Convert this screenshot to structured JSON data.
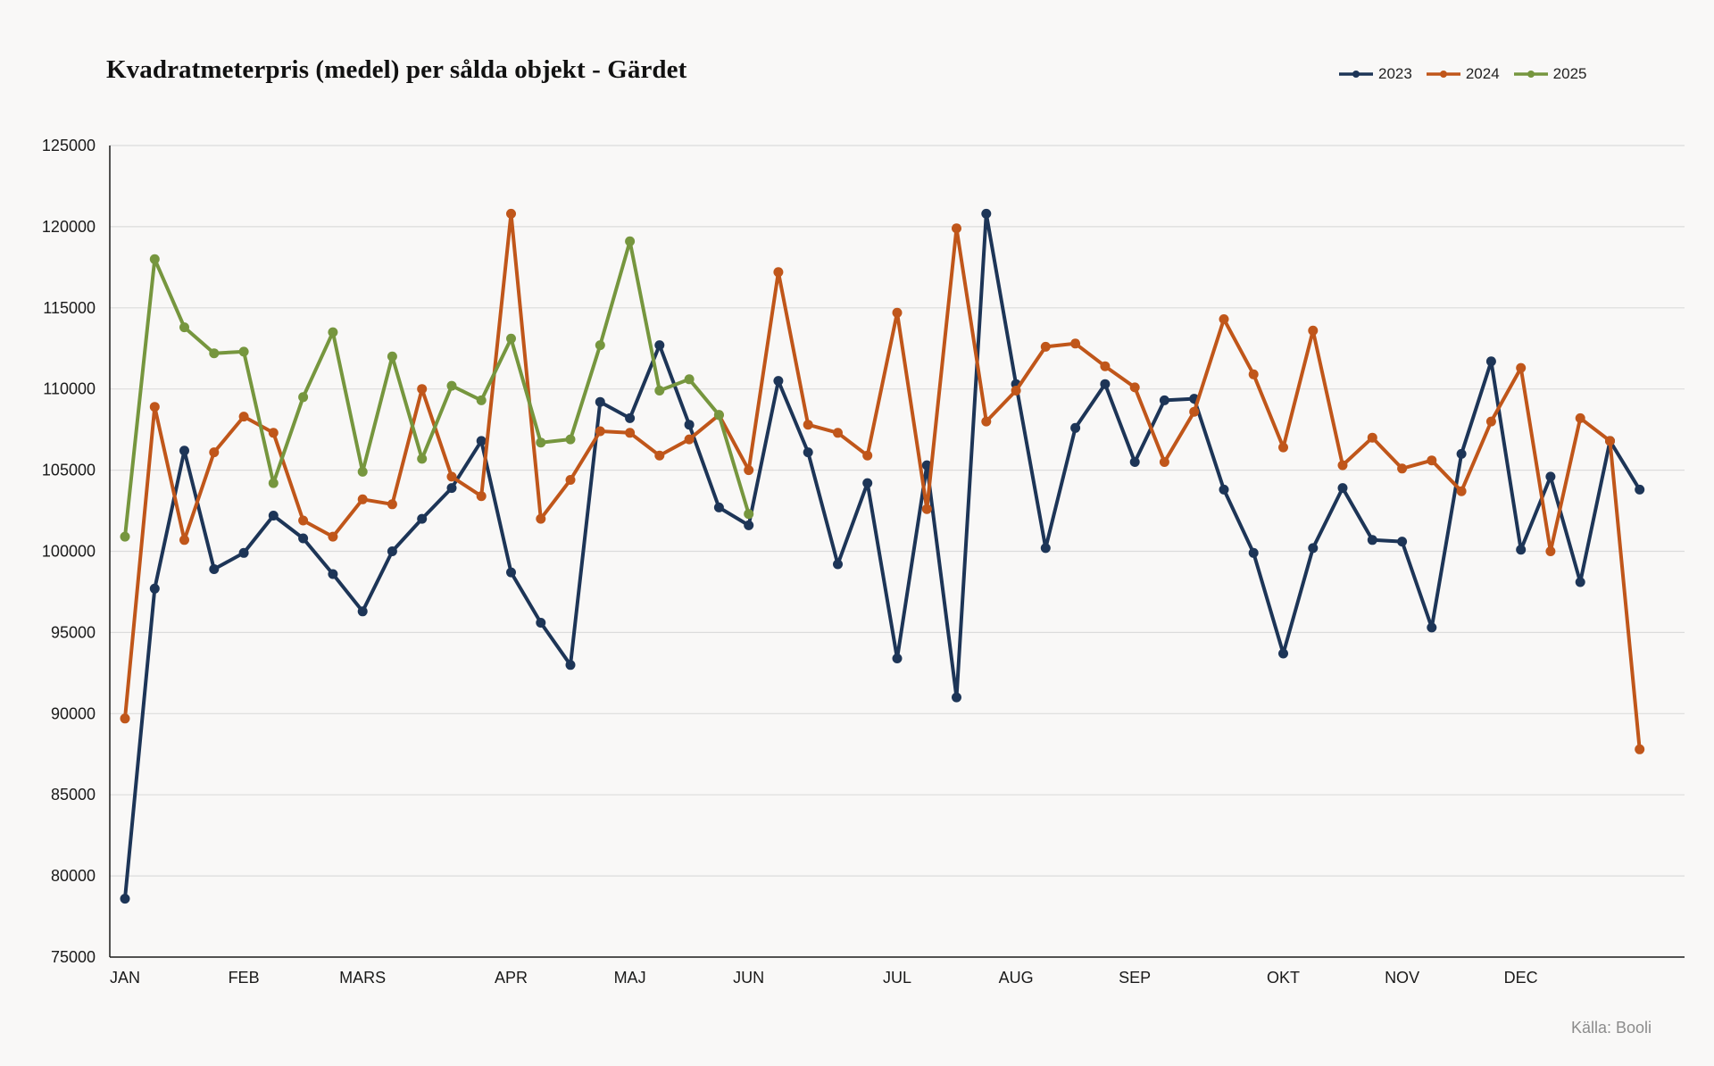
{
  "chart_data": {
    "type": "line",
    "title": "Kvadratmeterpris (medel) per sålda objekt - Gärdet",
    "source": "Källa: Booli",
    "xlabel": "",
    "ylabel": "",
    "ylim": [
      75000,
      125000
    ],
    "yticks": [
      75000,
      80000,
      85000,
      90000,
      95000,
      100000,
      105000,
      110000,
      115000,
      120000,
      125000
    ],
    "x_range": [
      1,
      53
    ],
    "month_ticks": [
      {
        "label": "JAN",
        "x": 1
      },
      {
        "label": "FEB",
        "x": 5
      },
      {
        "label": "MARS",
        "x": 9
      },
      {
        "label": "APR",
        "x": 14
      },
      {
        "label": "MAJ",
        "x": 18
      },
      {
        "label": "JUN",
        "x": 22
      },
      {
        "label": "JUL",
        "x": 27
      },
      {
        "label": "AUG",
        "x": 31
      },
      {
        "label": "SEP",
        "x": 35
      },
      {
        "label": "OKT",
        "x": 40
      },
      {
        "label": "NOV",
        "x": 44
      },
      {
        "label": "DEC",
        "x": 48
      }
    ],
    "grid": true,
    "legend_position": "top-right",
    "series": [
      {
        "name": "2023",
        "color": "#1d3557",
        "x": [
          1,
          2,
          3,
          4,
          5,
          6,
          7,
          8,
          9,
          10,
          11,
          12,
          13,
          14,
          15,
          16,
          17,
          18,
          19,
          20,
          21,
          22,
          23,
          24,
          25,
          26,
          27,
          28,
          29,
          30,
          31,
          32,
          33,
          34,
          35,
          36,
          37,
          38,
          39,
          40,
          41,
          42,
          43,
          44,
          45,
          46,
          47,
          48,
          49,
          50,
          51,
          52,
          53
        ],
        "values": [
          78600,
          97700,
          106200,
          98900,
          99900,
          102200,
          100800,
          98600,
          96300,
          100000,
          102000,
          103900,
          106800,
          98700,
          95600,
          93000,
          109200,
          108200,
          112700,
          107800,
          102700,
          101600,
          110500,
          106100,
          99200,
          104200,
          93400,
          105300,
          91000,
          120800,
          110300,
          100200,
          107600,
          110300,
          105500,
          109300,
          109400,
          103800,
          99900,
          93700,
          100200,
          103900,
          100700,
          100600,
          95300,
          106000,
          111700,
          100100,
          104600,
          98100,
          106800,
          103800,
          null
        ]
      },
      {
        "name": "2024",
        "color": "#c0561a",
        "x": [
          1,
          2,
          3,
          4,
          5,
          6,
          7,
          8,
          9,
          10,
          11,
          12,
          13,
          14,
          15,
          16,
          17,
          18,
          19,
          20,
          21,
          22,
          23,
          24,
          25,
          26,
          27,
          28,
          29,
          30,
          31,
          32,
          33,
          34,
          35,
          36,
          37,
          38,
          39,
          40,
          41,
          42,
          43,
          44,
          45,
          46,
          47,
          48,
          49,
          50,
          51,
          52,
          53
        ],
        "values": [
          89700,
          108900,
          100700,
          106100,
          108300,
          107300,
          101900,
          100900,
          103200,
          102900,
          110000,
          104600,
          103400,
          120800,
          102000,
          104400,
          107400,
          107300,
          105900,
          106900,
          108400,
          105000,
          117200,
          107800,
          107300,
          105900,
          114700,
          102600,
          119900,
          108000,
          109900,
          112600,
          112800,
          111400,
          110100,
          105500,
          108600,
          114300,
          110900,
          106400,
          113600,
          105300,
          107000,
          105100,
          105600,
          103700,
          108000,
          111300,
          100000,
          108200,
          106800,
          87800,
          null
        ]
      },
      {
        "name": "2025",
        "color": "#76963e",
        "x": [
          1,
          2,
          3,
          4,
          5,
          6,
          7,
          8,
          9,
          10,
          11,
          12,
          13,
          14,
          15,
          16,
          17,
          18,
          19,
          20,
          21,
          22
        ],
        "values": [
          100900,
          118000,
          113800,
          112200,
          112300,
          104200,
          109500,
          113500,
          104900,
          112000,
          105700,
          110200,
          109300,
          113100,
          106700,
          106900,
          112700,
          119100,
          109900,
          110600,
          108400,
          102300
        ]
      }
    ]
  }
}
